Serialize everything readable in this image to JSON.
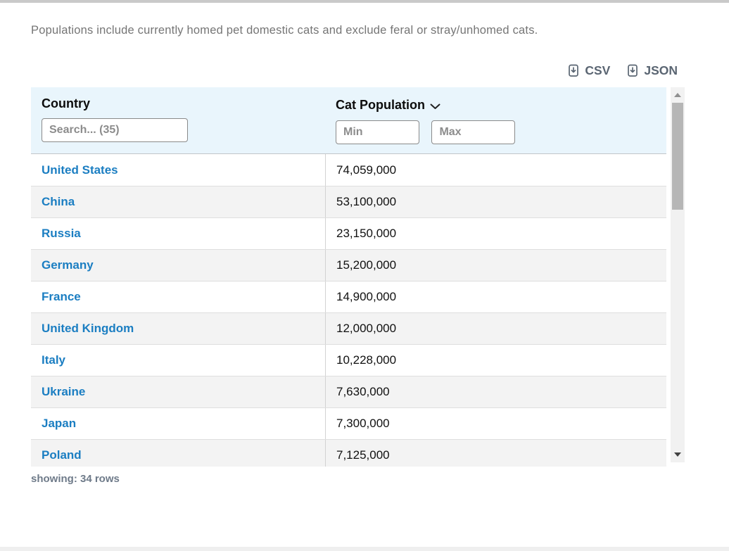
{
  "page": {
    "description": "Populations include currently homed pet domestic cats and exclude feral or stray/unhomed cats.",
    "status": "showing: 34 rows"
  },
  "export": {
    "csv_label": "CSV",
    "json_label": "JSON",
    "icon": "file-download-icon"
  },
  "table": {
    "country_header": "Country",
    "country_search_placeholder": "Search... (35)",
    "population_header": "Cat Population",
    "sort_icon": "chevron-down-icon",
    "min_placeholder": "Min",
    "max_placeholder": "Max",
    "rows": [
      {
        "country": "United States",
        "population": "74,059,000"
      },
      {
        "country": "China",
        "population": "53,100,000"
      },
      {
        "country": "Russia",
        "population": "23,150,000"
      },
      {
        "country": "Germany",
        "population": "15,200,000"
      },
      {
        "country": "France",
        "population": "14,900,000"
      },
      {
        "country": "United Kingdom",
        "population": "12,000,000"
      },
      {
        "country": "Italy",
        "population": "10,228,000"
      },
      {
        "country": "Ukraine",
        "population": "7,630,000"
      },
      {
        "country": "Japan",
        "population": "7,300,000"
      },
      {
        "country": "Poland",
        "population": "7,125,000"
      }
    ]
  },
  "colors": {
    "link_blue": "#1b7ec2",
    "header_bg": "#e9f5fc",
    "row_alt_bg": "#f3f3f3",
    "muted_text": "#757575",
    "export_text": "#5a6572",
    "scrollbar_thumb": "#b6b6b6"
  }
}
